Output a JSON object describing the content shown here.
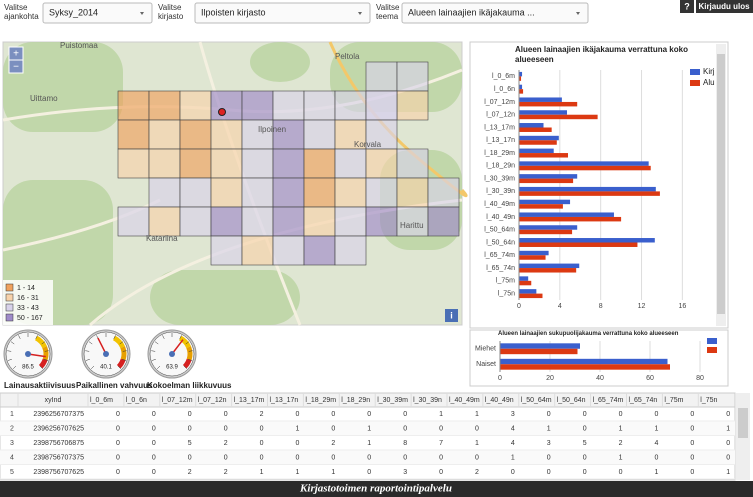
{
  "header": {
    "selectors": [
      {
        "label": "Valitse ajankohta",
        "value": "Syksy_2014"
      },
      {
        "label": "Valitse kirjasto",
        "value": "Ilpoisten kirjasto"
      },
      {
        "label": "Valitse teema",
        "value": "Alueen lainaajien ikäjakauma ..."
      }
    ],
    "help": "?",
    "logout": "Kirjaudu ulos"
  },
  "map": {
    "zoom_in": "+",
    "zoom_out": "−",
    "info": "i",
    "places": [
      "Puistomaa",
      "Peltola",
      "Uittamo",
      "Ilpoinen",
      "Korvala",
      "Katariina",
      "Harittu"
    ],
    "legend": [
      "1 - 14",
      "16 - 31",
      "33 - 43",
      "50 - 167"
    ],
    "legend_colors": [
      "#f0a15e",
      "#f7d2ab",
      "#d8d2ea",
      "#9f8bc9"
    ]
  },
  "chart_data": [
    {
      "type": "hbar",
      "title": "Alueen lainaajien ikäjakauma verrattuna koko alueeseen",
      "categories": [
        "l_0_6m",
        "l_0_6n",
        "l_07_12m",
        "l_07_12n",
        "l_13_17m",
        "l_13_17n",
        "l_18_29m",
        "l_18_29n",
        "l_30_39m",
        "l_30_39n",
        "l_40_49m",
        "l_40_49n",
        "l_50_64m",
        "l_50_64n",
        "l_65_74m",
        "l_65_74n",
        "l_75m",
        "l_75n"
      ],
      "series": [
        {
          "name": "Kirj",
          "color": "#3a5fcd",
          "values": [
            0.3,
            0.3,
            4.2,
            4.7,
            2.4,
            3.9,
            3.4,
            12.7,
            5.7,
            13.4,
            5.0,
            9.3,
            5.7,
            13.3,
            2.9,
            5.9,
            0.9,
            1.7
          ]
        },
        {
          "name": "Alu",
          "color": "#dc3912",
          "values": [
            0.2,
            0.4,
            5.7,
            7.7,
            3.2,
            3.7,
            4.8,
            12.9,
            5.3,
            13.8,
            4.3,
            10.0,
            5.2,
            11.6,
            2.6,
            5.6,
            1.2,
            2.3
          ]
        }
      ],
      "xlim": [
        0,
        19
      ],
      "xticks": [
        0,
        4,
        8,
        12,
        16
      ],
      "grid": true
    },
    {
      "type": "hbar",
      "title": "Alueen lainaajien sukupuolijakauma verrattuna koko alueeseen",
      "categories": [
        "Miehet",
        "Naiset"
      ],
      "series": [
        {
          "color": "#3a5fcd",
          "values": [
            32,
            67
          ]
        },
        {
          "color": "#dc3912",
          "values": [
            31,
            68
          ]
        }
      ],
      "xlim": [
        0,
        84
      ],
      "xticks": [
        0,
        20,
        40,
        60,
        80
      ],
      "grid": true
    },
    {
      "type": "gauge",
      "title": "Lainausaktiivisuus",
      "value": 86.5,
      "ylim": [
        0,
        100
      ]
    },
    {
      "type": "gauge",
      "title": "Paikallinen vahvuus",
      "value": 40.1,
      "ylim": [
        0,
        100
      ]
    },
    {
      "type": "gauge",
      "title": "Kokoelman liikkuvuus",
      "value": 63.9,
      "ylim": [
        0,
        100
      ]
    }
  ],
  "table": {
    "columns": [
      "xyInd",
      "l_0_6m",
      "l_0_6n",
      "l_07_12m",
      "l_07_12n",
      "l_13_17m",
      "l_13_17n",
      "l_18_29m",
      "l_18_29n",
      "l_30_39m",
      "l_30_39n",
      "l_40_49m",
      "l_40_49n",
      "l_50_64m",
      "l_50_64n",
      "l_65_74m",
      "l_65_74n",
      "l_75m",
      "l_75n"
    ],
    "index": [
      1,
      2,
      3,
      4,
      5
    ],
    "rows": [
      [
        "2396256707375",
        0,
        0,
        0,
        0,
        2,
        0,
        0,
        0,
        0,
        1,
        1,
        3,
        0,
        0,
        0,
        0,
        0,
        0
      ],
      [
        "2396256707625",
        0,
        0,
        0,
        0,
        0,
        1,
        0,
        1,
        0,
        0,
        0,
        4,
        1,
        0,
        1,
        1,
        0,
        1
      ],
      [
        "2398756706875",
        0,
        0,
        5,
        2,
        0,
        0,
        2,
        1,
        8,
        7,
        1,
        4,
        3,
        5,
        2,
        4,
        0,
        0
      ],
      [
        "2398756707375",
        0,
        0,
        0,
        0,
        0,
        0,
        0,
        0,
        0,
        0,
        0,
        1,
        0,
        0,
        1,
        0,
        0,
        0
      ],
      [
        "2398756707625",
        0,
        0,
        2,
        2,
        1,
        1,
        1,
        0,
        3,
        0,
        2,
        0,
        0,
        0,
        0,
        1,
        0,
        1
      ]
    ]
  },
  "footer": "Kirjastotoimen raportointipalvelu"
}
